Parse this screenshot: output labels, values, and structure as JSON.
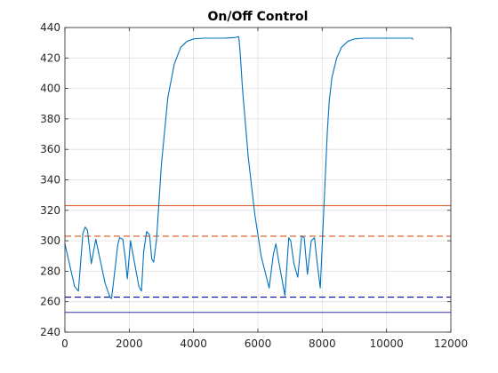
{
  "chart_data": {
    "type": "line",
    "title": "On/Off Control",
    "xlabel": "",
    "ylabel": "",
    "xlim": [
      0,
      12000
    ],
    "ylim": [
      240,
      440
    ],
    "xticks": [
      0,
      2000,
      4000,
      6000,
      8000,
      10000,
      12000
    ],
    "yticks": [
      240,
      260,
      280,
      300,
      320,
      340,
      360,
      380,
      400,
      420,
      440
    ],
    "grid": true,
    "series": [
      {
        "style": "solid",
        "color": "#0072BD",
        "x": [
          0,
          150,
          300,
          420,
          560,
          630,
          700,
          820,
          960,
          1100,
          1250,
          1400,
          1450,
          1550,
          1640,
          1700,
          1800,
          1880,
          1940,
          2040,
          2160,
          2300,
          2380,
          2450,
          2540,
          2630,
          2700,
          2760,
          2850,
          3000,
          3200,
          3400,
          3600,
          3800,
          4000,
          4300,
          4700,
          5000,
          5300,
          5400,
          5420,
          5460,
          5520,
          5700,
          5900,
          6100,
          6350,
          6480,
          6560,
          6620,
          6720,
          6840,
          6960,
          7020,
          7120,
          7240,
          7360,
          7440,
          7540,
          7660,
          7760,
          7840,
          7940,
          8080,
          8160,
          8220,
          8300,
          8450,
          8600,
          8800,
          9000,
          9300,
          9600,
          10000,
          10400,
          10800,
          10820
        ],
        "y": [
          298,
          284,
          270,
          267,
          305,
          309,
          307,
          285,
          301,
          287,
          272,
          263,
          262,
          280,
          297,
          302,
          301,
          288,
          275,
          300,
          286,
          270,
          267,
          293,
          306,
          304,
          288,
          286,
          301,
          350,
          394,
          416,
          427,
          431,
          432.5,
          433,
          433,
          433,
          433.5,
          434,
          431,
          420,
          400,
          355,
          318,
          290,
          269,
          291,
          298,
          290,
          278,
          264,
          302,
          300,
          285,
          276,
          303,
          302,
          278,
          300,
          302,
          286,
          269,
          335,
          372,
          392,
          407,
          420,
          427,
          431,
          432.5,
          433,
          433,
          433,
          433,
          433,
          432
        ]
      }
    ],
    "reference_lines": [
      {
        "y": 323,
        "style": "solid",
        "color": "#D95319"
      },
      {
        "y": 303,
        "style": "dashed",
        "color": "#D95319"
      },
      {
        "y": 263,
        "style": "dashed",
        "color": "#0000A0"
      },
      {
        "y": 253,
        "style": "solid",
        "color": "#3030B0"
      }
    ]
  }
}
